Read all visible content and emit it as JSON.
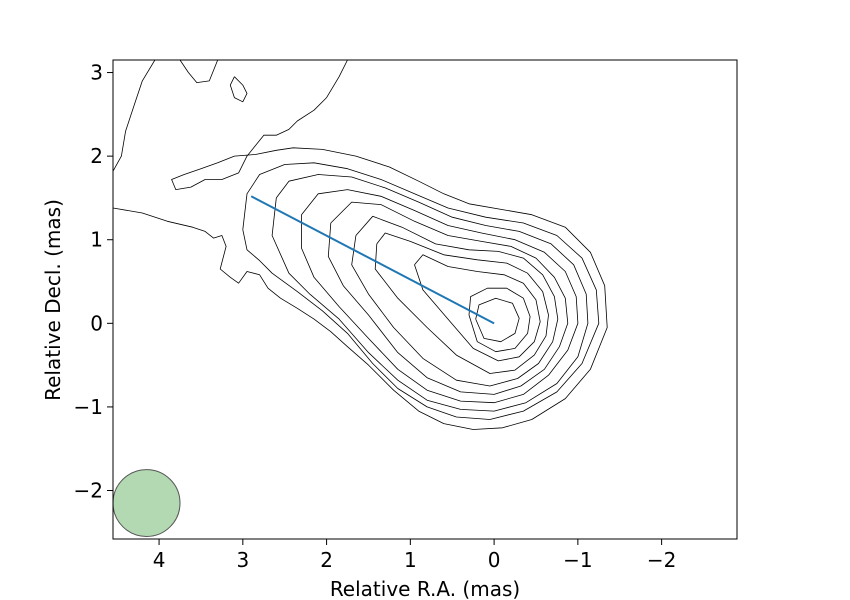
{
  "chart_data": {
    "type": "contour",
    "title": "",
    "xlabel": "Relative R.A. (mas)",
    "ylabel": "Relative Decl. (mas)",
    "xlim": [
      4.55,
      -2.9
    ],
    "ylim": [
      -2.58,
      3.15
    ],
    "x_ticks": [
      4,
      3,
      2,
      1,
      0,
      -1,
      -2
    ],
    "y_ticks": [
      -2,
      -1,
      0,
      1,
      2,
      3
    ],
    "x_tick_labels": [
      "4",
      "3",
      "2",
      "1",
      "0",
      "−1",
      "−2"
    ],
    "y_tick_labels": [
      "−2",
      "−1",
      "0",
      "1",
      "2",
      "3"
    ],
    "grid": false,
    "core": {
      "x": 0.0,
      "y": 0.0
    },
    "jet_line": {
      "color": "#1f77b4",
      "points": [
        [
          2.9,
          1.52
        ],
        [
          0.0,
          0.0
        ]
      ]
    },
    "beam": {
      "x": 4.15,
      "y": -2.15,
      "major_mas": 0.8,
      "minor_mas": 0.8,
      "color": "#b3d9b3"
    },
    "contours": [
      {
        "level": 1,
        "paths": [
          [
            [
              4.55,
              1.38
            ],
            [
              4.2,
              1.32
            ],
            [
              3.9,
              1.22
            ],
            [
              3.6,
              1.15
            ],
            [
              3.45,
              1.1
            ],
            [
              3.35,
              1.02
            ],
            [
              3.25,
              1.05
            ],
            [
              3.2,
              0.92
            ],
            [
              3.27,
              0.65
            ],
            [
              3.15,
              0.55
            ],
            [
              3.05,
              0.48
            ],
            [
              2.95,
              0.62
            ],
            [
              2.8,
              0.58
            ],
            [
              2.7,
              0.42
            ],
            [
              2.55,
              0.3
            ],
            [
              2.35,
              0.18
            ],
            [
              2.15,
              0.05
            ],
            [
              1.95,
              -0.1
            ],
            [
              1.75,
              -0.28
            ],
            [
              1.5,
              -0.5
            ],
            [
              1.2,
              -0.8
            ],
            [
              0.9,
              -1.05
            ],
            [
              0.6,
              -1.2
            ],
            [
              0.25,
              -1.27
            ],
            [
              -0.1,
              -1.25
            ],
            [
              -0.45,
              -1.15
            ],
            [
              -0.85,
              -0.9
            ],
            [
              -1.15,
              -0.55
            ],
            [
              -1.35,
              -0.05
            ],
            [
              -1.32,
              0.45
            ],
            [
              -1.15,
              0.85
            ],
            [
              -0.85,
              1.15
            ],
            [
              -0.45,
              1.3
            ],
            [
              -0.1,
              1.36
            ],
            [
              0.3,
              1.43
            ],
            [
              0.6,
              1.55
            ],
            [
              0.9,
              1.7
            ],
            [
              1.25,
              1.87
            ],
            [
              1.65,
              2.0
            ],
            [
              2.05,
              2.08
            ],
            [
              2.4,
              2.1
            ],
            [
              2.6,
              2.07
            ],
            [
              2.85,
              2.02
            ],
            [
              3.1,
              2.0
            ],
            [
              3.3,
              1.92
            ],
            [
              3.5,
              1.85
            ],
            [
              3.7,
              1.78
            ],
            [
              3.85,
              1.72
            ],
            [
              3.8,
              1.6
            ],
            [
              3.62,
              1.63
            ],
            [
              3.45,
              1.72
            ],
            [
              3.25,
              1.72
            ],
            [
              3.05,
              1.8
            ],
            [
              2.95,
              2.0
            ],
            [
              2.75,
              2.25
            ],
            [
              2.6,
              2.25
            ],
            [
              2.45,
              2.32
            ],
            [
              2.35,
              2.42
            ],
            [
              2.15,
              2.55
            ],
            [
              2.0,
              2.7
            ],
            [
              1.85,
              2.95
            ],
            [
              1.75,
              3.15
            ]
          ],
          [
            [
              3.3,
              3.15
            ],
            [
              3.4,
              2.9
            ],
            [
              3.55,
              2.88
            ],
            [
              3.65,
              3.0
            ],
            [
              3.75,
              3.15
            ]
          ],
          [
            [
              4.55,
              1.82
            ],
            [
              4.45,
              2.0
            ],
            [
              4.4,
              2.3
            ],
            [
              4.3,
              2.6
            ],
            [
              4.2,
              2.9
            ],
            [
              4.05,
              3.15
            ]
          ]
        ]
      },
      {
        "level": 2,
        "paths": [
          [
            [
              3.1,
              2.95
            ],
            [
              3.0,
              2.85
            ],
            [
              2.95,
              2.75
            ],
            [
              3.0,
              2.65
            ],
            [
              3.1,
              2.7
            ],
            [
              3.15,
              2.85
            ],
            [
              3.1,
              2.95
            ]
          ]
        ]
      },
      {
        "level": 3,
        "paths": [
          [
            [
              3.0,
              1.12
            ],
            [
              2.95,
              0.88
            ],
            [
              2.8,
              0.75
            ],
            [
              2.65,
              0.6
            ],
            [
              2.35,
              0.38
            ],
            [
              2.05,
              0.15
            ],
            [
              1.75,
              -0.12
            ],
            [
              1.45,
              -0.48
            ],
            [
              1.15,
              -0.78
            ],
            [
              0.8,
              -1.0
            ],
            [
              0.45,
              -1.12
            ],
            [
              0.05,
              -1.15
            ],
            [
              -0.35,
              -1.05
            ],
            [
              -0.75,
              -0.82
            ],
            [
              -1.05,
              -0.48
            ],
            [
              -1.25,
              0.0
            ],
            [
              -1.22,
              0.4
            ],
            [
              -1.05,
              0.78
            ],
            [
              -0.75,
              1.05
            ],
            [
              -0.35,
              1.2
            ],
            [
              0.1,
              1.27
            ],
            [
              0.55,
              1.38
            ],
            [
              0.95,
              1.55
            ],
            [
              1.35,
              1.72
            ],
            [
              1.75,
              1.85
            ],
            [
              2.15,
              1.92
            ],
            [
              2.5,
              1.9
            ],
            [
              2.8,
              1.78
            ],
            [
              2.95,
              1.55
            ],
            [
              3.0,
              1.12
            ]
          ]
        ]
      },
      {
        "level": 4,
        "paths": [
          [
            [
              2.6,
              1.5
            ],
            [
              2.65,
              1.05
            ],
            [
              2.45,
              0.6
            ],
            [
              2.2,
              0.35
            ],
            [
              1.85,
              0.05
            ],
            [
              1.5,
              -0.35
            ],
            [
              1.15,
              -0.68
            ],
            [
              0.8,
              -0.92
            ],
            [
              0.4,
              -1.03
            ],
            [
              0.0,
              -1.05
            ],
            [
              -0.38,
              -0.95
            ],
            [
              -0.75,
              -0.72
            ],
            [
              -1.0,
              -0.4
            ],
            [
              -1.12,
              0.0
            ],
            [
              -1.1,
              0.35
            ],
            [
              -0.95,
              0.7
            ],
            [
              -0.68,
              0.95
            ],
            [
              -0.3,
              1.1
            ],
            [
              0.1,
              1.17
            ],
            [
              0.5,
              1.27
            ],
            [
              0.9,
              1.45
            ],
            [
              1.3,
              1.62
            ],
            [
              1.7,
              1.75
            ],
            [
              2.1,
              1.78
            ],
            [
              2.45,
              1.7
            ],
            [
              2.6,
              1.5
            ]
          ]
        ]
      },
      {
        "level": 5,
        "paths": [
          [
            [
              2.3,
              1.3
            ],
            [
              2.3,
              0.9
            ],
            [
              2.15,
              0.55
            ],
            [
              1.85,
              0.2
            ],
            [
              1.5,
              -0.18
            ],
            [
              1.15,
              -0.55
            ],
            [
              0.8,
              -0.8
            ],
            [
              0.4,
              -0.93
            ],
            [
              0.0,
              -0.95
            ],
            [
              -0.35,
              -0.85
            ],
            [
              -0.65,
              -0.62
            ],
            [
              -0.88,
              -0.32
            ],
            [
              -1.0,
              0.0
            ],
            [
              -0.98,
              0.32
            ],
            [
              -0.85,
              0.62
            ],
            [
              -0.6,
              0.85
            ],
            [
              -0.25,
              1.0
            ],
            [
              0.15,
              1.08
            ],
            [
              0.55,
              1.17
            ],
            [
              0.95,
              1.35
            ],
            [
              1.35,
              1.52
            ],
            [
              1.75,
              1.6
            ],
            [
              2.1,
              1.55
            ],
            [
              2.3,
              1.3
            ]
          ]
        ]
      },
      {
        "level": 6,
        "paths": [
          [
            [
              1.95,
              1.2
            ],
            [
              1.98,
              0.8
            ],
            [
              1.8,
              0.45
            ],
            [
              1.5,
              0.1
            ],
            [
              1.15,
              -0.35
            ],
            [
              0.8,
              -0.65
            ],
            [
              0.4,
              -0.82
            ],
            [
              0.0,
              -0.85
            ],
            [
              -0.32,
              -0.75
            ],
            [
              -0.6,
              -0.55
            ],
            [
              -0.78,
              -0.28
            ],
            [
              -0.88,
              0.0
            ],
            [
              -0.85,
              0.3
            ],
            [
              -0.72,
              0.55
            ],
            [
              -0.5,
              0.78
            ],
            [
              -0.2,
              0.92
            ],
            [
              0.15,
              0.98
            ],
            [
              0.55,
              1.05
            ],
            [
              0.95,
              1.22
            ],
            [
              1.35,
              1.42
            ],
            [
              1.7,
              1.45
            ],
            [
              1.95,
              1.2
            ]
          ]
        ]
      },
      {
        "level": 7,
        "paths": [
          [
            [
              1.65,
              1.05
            ],
            [
              1.7,
              0.7
            ],
            [
              1.5,
              0.35
            ],
            [
              1.2,
              -0.05
            ],
            [
              0.85,
              -0.42
            ],
            [
              0.45,
              -0.68
            ],
            [
              0.05,
              -0.75
            ],
            [
              -0.28,
              -0.66
            ],
            [
              -0.53,
              -0.48
            ],
            [
              -0.7,
              -0.22
            ],
            [
              -0.76,
              0.05
            ],
            [
              -0.72,
              0.32
            ],
            [
              -0.58,
              0.58
            ],
            [
              -0.35,
              0.78
            ],
            [
              -0.05,
              0.86
            ],
            [
              0.3,
              0.88
            ],
            [
              0.7,
              0.95
            ],
            [
              1.1,
              1.15
            ],
            [
              1.45,
              1.28
            ],
            [
              1.65,
              1.05
            ]
          ]
        ]
      },
      {
        "level": 8,
        "paths": [
          [
            [
              1.4,
              0.95
            ],
            [
              1.42,
              0.65
            ],
            [
              1.15,
              0.3
            ],
            [
              0.8,
              -0.05
            ],
            [
              0.45,
              -0.38
            ],
            [
              0.05,
              -0.6
            ],
            [
              -0.25,
              -0.56
            ],
            [
              -0.48,
              -0.38
            ],
            [
              -0.62,
              -0.15
            ],
            [
              -0.65,
              0.1
            ],
            [
              -0.58,
              0.38
            ],
            [
              -0.4,
              0.6
            ],
            [
              -0.15,
              0.72
            ],
            [
              0.2,
              0.76
            ],
            [
              0.6,
              0.82
            ],
            [
              1.0,
              0.98
            ],
            [
              1.3,
              1.08
            ],
            [
              1.4,
              0.95
            ]
          ]
        ]
      },
      {
        "level": 9,
        "paths": [
          [
            [
              0.95,
              0.7
            ],
            [
              0.85,
              0.4
            ],
            [
              0.55,
              0.05
            ],
            [
              0.25,
              -0.3
            ],
            [
              -0.05,
              -0.45
            ],
            [
              -0.3,
              -0.4
            ],
            [
              -0.48,
              -0.22
            ],
            [
              -0.55,
              0.02
            ],
            [
              -0.5,
              0.28
            ],
            [
              -0.35,
              0.48
            ],
            [
              -0.12,
              0.58
            ],
            [
              0.2,
              0.62
            ],
            [
              0.55,
              0.68
            ],
            [
              0.85,
              0.82
            ],
            [
              0.95,
              0.7
            ]
          ]
        ]
      },
      {
        "level": 10,
        "paths": [
          [
            [
              0.3,
              0.1
            ],
            [
              0.2,
              -0.22
            ],
            [
              -0.02,
              -0.34
            ],
            [
              -0.25,
              -0.3
            ],
            [
              -0.4,
              -0.12
            ],
            [
              -0.43,
              0.08
            ],
            [
              -0.35,
              0.3
            ],
            [
              -0.15,
              0.42
            ],
            [
              0.08,
              0.42
            ],
            [
              0.28,
              0.32
            ],
            [
              0.3,
              0.1
            ]
          ]
        ]
      },
      {
        "level": 11,
        "paths": [
          [
            [
              0.22,
              0.05
            ],
            [
              0.12,
              -0.18
            ],
            [
              -0.08,
              -0.22
            ],
            [
              -0.25,
              -0.12
            ],
            [
              -0.3,
              0.06
            ],
            [
              -0.22,
              0.24
            ],
            [
              -0.02,
              0.3
            ],
            [
              0.18,
              0.22
            ],
            [
              0.22,
              0.05
            ]
          ]
        ]
      }
    ]
  }
}
